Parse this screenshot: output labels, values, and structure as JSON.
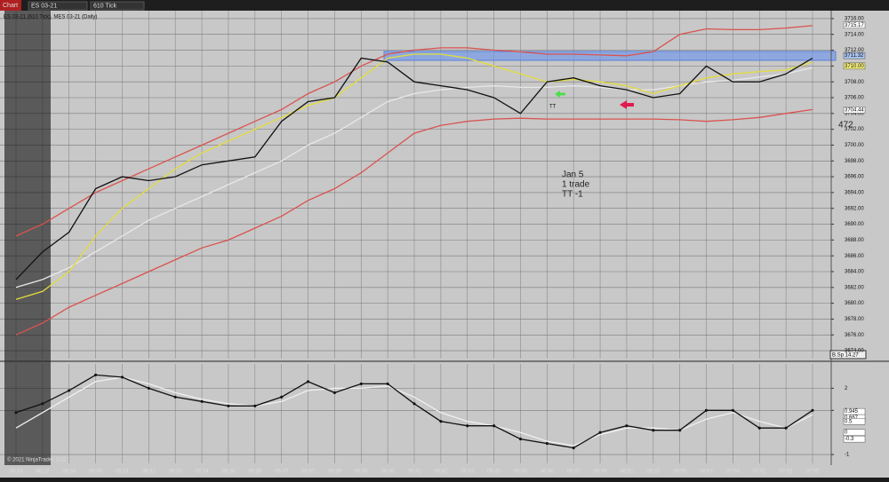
{
  "toolbar": {
    "tab": "Chart",
    "instrument": "ES 03-21",
    "interval": "610 Tick"
  },
  "chart_label": "ES 03-21 (610 Tick), MES 03-21 (Daily)",
  "copyright": "© 2021 NinjaTrader, LLC",
  "chart_data": [
    {
      "type": "line",
      "categories": [
        "06:19",
        "06:27",
        "06:30",
        "06:30",
        "06:31",
        "06:32",
        "06:33",
        "06:34",
        "06:36",
        "06:36",
        "06:37",
        "06:37",
        "06:39",
        "06:40",
        "06:40",
        "06:41",
        "06:42",
        "06:43",
        "06:45",
        "06:45",
        "06:46",
        "06:47",
        "06:49",
        "06:51",
        "06:53",
        "06:55",
        "06:57",
        "07:00",
        "07:01",
        "07:02",
        "07:05"
      ],
      "series": [
        {
          "color": "#e8e8e8",
          "values": [
            3682,
            3683,
            3684.5,
            3686.5,
            3688.5,
            3690.5,
            3692,
            3693.5,
            3695,
            3696.5,
            3698,
            3700,
            3701.5,
            3703.5,
            3705.5,
            3706.5,
            3707,
            3707.3,
            3707.5,
            3707.3,
            3707.3,
            3707.5,
            3707.3,
            3707,
            3707,
            3707.5,
            3708,
            3708.2,
            3708.6,
            3709,
            3709.8
          ]
        },
        {
          "color": "#e3dd3c",
          "values": [
            3680.5,
            3681.5,
            3684,
            3688.5,
            3692,
            3694.5,
            3697,
            3699,
            3700.5,
            3702,
            3703.5,
            3705,
            3706,
            3708.5,
            3711,
            3711.5,
            3711.5,
            3711,
            3710,
            3709,
            3708,
            3708.3,
            3708,
            3707.5,
            3706.5,
            3707.5,
            3708.5,
            3709,
            3709.3,
            3709.5,
            3710.5
          ]
        },
        {
          "color": "#d9534f",
          "values": [
            3688.5,
            3690,
            3692,
            3694,
            3695.5,
            3697,
            3698.5,
            3700,
            3701.5,
            3703,
            3704.5,
            3706.5,
            3708,
            3710,
            3711.5,
            3712,
            3712.3,
            3712.3,
            3712,
            3711.8,
            3711.5,
            3711.5,
            3711.4,
            3711.3,
            3711.8,
            3714,
            3714.7,
            3714.6,
            3714.6,
            3714.8,
            3715.1
          ]
        },
        {
          "color": "#d9534f",
          "values": [
            3676,
            3677.5,
            3679.5,
            3681,
            3682.5,
            3684,
            3685.5,
            3687,
            3688,
            3689.5,
            3691,
            3693,
            3694.5,
            3696.5,
            3699,
            3701.5,
            3702.5,
            3703,
            3703.3,
            3703.4,
            3703.3,
            3703.3,
            3703.3,
            3703.3,
            3703.3,
            3703.2,
            3703,
            3703.2,
            3703.5,
            3704,
            3704.5
          ]
        },
        {
          "color": "#111111",
          "values": [
            3683,
            3686.5,
            3689,
            3694.5,
            3696,
            3695.5,
            3696,
            3697.5,
            3698,
            3698.5,
            3703,
            3705.5,
            3706,
            3711,
            3710.5,
            3708,
            3707.5,
            3707,
            3706,
            3704,
            3708,
            3708.5,
            3707.5,
            3707,
            3706,
            3706.5,
            3710,
            3708,
            3708,
            3709,
            3711
          ]
        }
      ],
      "ylim": [
        3673,
        3717
      ],
      "yticks": [
        {
          "value": 3674,
          "label": "3674.00"
        },
        {
          "value": 3676,
          "label": "3676.00"
        },
        {
          "value": 3678,
          "label": "3678.00"
        },
        {
          "value": 3680,
          "label": "3680.00"
        },
        {
          "value": 3682,
          "label": "3682.00"
        },
        {
          "value": 3684,
          "label": "3684.00"
        },
        {
          "value": 3686,
          "label": "3686.00"
        },
        {
          "value": 3688,
          "label": "3688.00"
        },
        {
          "value": 3690,
          "label": "3690.00"
        },
        {
          "value": 3692,
          "label": "3692.00"
        },
        {
          "value": 3694,
          "label": "3694.00"
        },
        {
          "value": 3696,
          "label": "3696.00"
        },
        {
          "value": 3698,
          "label": "3698.00"
        },
        {
          "value": 3700,
          "label": "3700.00"
        },
        {
          "value": 3702,
          "label": "3702.00"
        },
        {
          "value": 3704,
          "label": "3704.00"
        },
        {
          "value": 3706,
          "label": "3706.00"
        },
        {
          "value": 3708,
          "label": "3708.00"
        },
        {
          "value": 3710,
          "label": "3710.00"
        },
        {
          "value": 3712,
          "label": "3712.00"
        },
        {
          "value": 3714,
          "label": "3714.00"
        },
        {
          "value": 3716,
          "label": "3716.00"
        }
      ],
      "markers": [
        {
          "value": 3715.17,
          "label": "3715.17",
          "color": "#ffffff"
        },
        {
          "value": 3711.32,
          "label": "3711.32",
          "color": "#a9c4ee"
        },
        {
          "value": 3710,
          "label": "3710.00",
          "color": "#f3ee7a"
        },
        {
          "value": 3704.44,
          "label": "3704.44",
          "color": "#ffffff"
        }
      ],
      "grid": true,
      "annotations": [
        "Jan 5",
        "1 trade",
        "TT  -1",
        "TT",
        "472",
        "B.Sp 14.27"
      ]
    },
    {
      "type": "line",
      "series": [
        {
          "color": "#f0f0f0",
          "values": [
            0.2,
            0.9,
            1.6,
            2.3,
            2.5,
            2.2,
            1.8,
            1.5,
            1.3,
            1.2,
            1.4,
            1.9,
            2.0,
            2.0,
            2.1,
            1.6,
            0.9,
            0.5,
            0.3,
            0.0,
            -0.4,
            -0.6,
            -0.1,
            0.2,
            0.2,
            0.1,
            0.6,
            0.9,
            0.5,
            0.2,
            0.8
          ]
        },
        {
          "color": "#111111",
          "dots": true,
          "values": [
            0.9,
            1.3,
            1.9,
            2.6,
            2.5,
            2.0,
            1.6,
            1.4,
            1.2,
            1.2,
            1.6,
            2.3,
            1.8,
            2.2,
            2.2,
            1.3,
            0.5,
            0.3,
            0.3,
            -0.3,
            -0.5,
            -0.7,
            0.0,
            0.3,
            0.1,
            0.1,
            1.0,
            1.0,
            0.2,
            0.2,
            1.0
          ]
        }
      ],
      "ylim": [
        -1.4,
        3.1
      ],
      "yticks": [
        -1,
        1,
        2
      ],
      "markers": [
        {
          "value": 0.945,
          "label": "0.945",
          "color": "#ffffff"
        },
        {
          "value": 0.667,
          "label": "0.667",
          "color": "#ffffff"
        },
        {
          "value": 0.5,
          "label": "0.5",
          "color": "#ffffff"
        },
        {
          "value": 0,
          "label": "0",
          "color": "#ffffff"
        },
        {
          "value": -0.3,
          "label": "-0.3",
          "color": "#ffffff"
        }
      ],
      "grid": true
    }
  ]
}
